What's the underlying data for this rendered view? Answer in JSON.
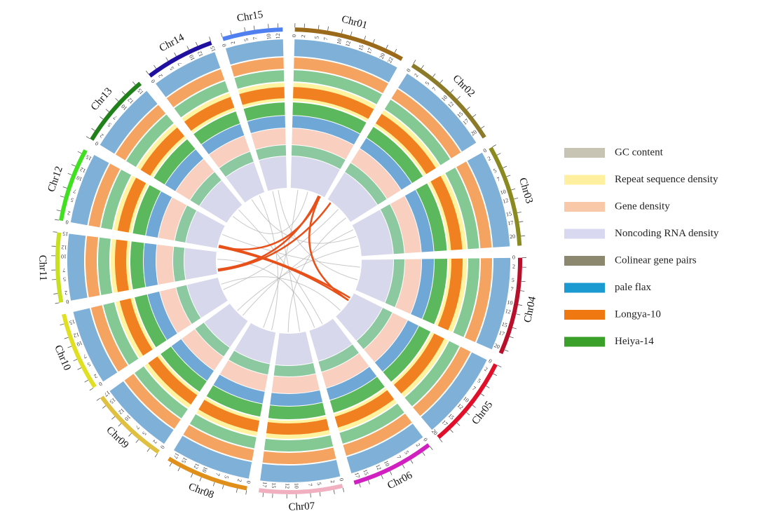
{
  "chart_data": {
    "type": "circos",
    "chromosomes": [
      {
        "name": "Chr01",
        "length": 24,
        "color": "#9a6a1a",
        "ticks": [
          0,
          2,
          5,
          7,
          10,
          12,
          15,
          17,
          20,
          22
        ]
      },
      {
        "name": "Chr02",
        "length": 22,
        "color": "#8a7a2a",
        "ticks": [
          0,
          2,
          5,
          7,
          10,
          12,
          15,
          17,
          20
        ]
      },
      {
        "name": "Chr03",
        "length": 22,
        "color": "#8a8a20",
        "ticks": [
          0,
          2,
          5,
          7,
          10,
          12,
          15,
          17,
          20
        ]
      },
      {
        "name": "Chr04",
        "length": 21,
        "color": "#b8102a",
        "ticks": [
          0,
          2,
          5,
          7,
          10,
          12,
          15,
          17,
          20
        ]
      },
      {
        "name": "Chr05",
        "length": 20,
        "color": "#e0102a",
        "ticks": [
          0,
          2,
          5,
          7,
          10,
          12,
          15,
          17,
          20
        ]
      },
      {
        "name": "Chr06",
        "length": 18,
        "color": "#d020c0",
        "ticks": [
          0,
          2,
          5,
          7,
          10,
          12,
          15,
          17
        ]
      },
      {
        "name": "Chr07",
        "length": 18,
        "color": "#f0b0c0",
        "ticks": [
          0,
          2,
          5,
          7,
          10,
          12,
          15,
          17
        ]
      },
      {
        "name": "Chr08",
        "length": 18,
        "color": "#e0901a",
        "ticks": [
          0,
          2,
          5,
          7,
          10,
          12,
          15,
          17
        ]
      },
      {
        "name": "Chr09",
        "length": 17,
        "color": "#e0c040",
        "ticks": [
          0,
          2,
          5,
          7,
          10,
          12,
          15,
          17
        ]
      },
      {
        "name": "Chr10",
        "length": 17,
        "color": "#e0e020",
        "ticks": [
          0,
          2,
          5,
          7,
          10,
          12,
          15
        ]
      },
      {
        "name": "Chr11",
        "length": 15,
        "color": "#c8e020",
        "ticks": [
          0,
          2,
          5,
          7,
          10,
          12,
          15
        ]
      },
      {
        "name": "Chr12",
        "length": 16,
        "color": "#40e020",
        "ticks": [
          0,
          2,
          5,
          7,
          10,
          12,
          15
        ]
      },
      {
        "name": "Chr13",
        "length": 16,
        "color": "#20801a",
        "ticks": [
          0,
          2,
          5,
          7,
          10,
          12,
          15
        ]
      },
      {
        "name": "Chr14",
        "length": 15,
        "color": "#2010a0",
        "ticks": [
          0,
          2,
          5,
          7,
          10,
          12,
          15
        ]
      },
      {
        "name": "Chr15",
        "length": 13,
        "color": "#5080f0",
        "ticks": [
          0,
          2,
          5,
          7,
          10,
          12
        ]
      }
    ],
    "legend": [
      {
        "name": "GC content",
        "color": "#c8c4b4"
      },
      {
        "name": "Repeat sequence density",
        "color": "#fff0a0"
      },
      {
        "name": "Gene density",
        "color": "#f9c8a8"
      },
      {
        "name": "Noncoding RNA density",
        "color": "#d8d8f0"
      },
      {
        "name": "Colinear gene pairs",
        "color": "#8c8870"
      },
      {
        "name": "pale flax",
        "color": "#1a9ad0"
      },
      {
        "name": "Longya-10",
        "color": "#f07810"
      },
      {
        "name": "Heiya-14",
        "color": "#3aa02a"
      }
    ],
    "links": [
      {
        "source": 0,
        "source_pos": 21,
        "target": 11,
        "target_pos": 1,
        "color": "#e8501a"
      },
      {
        "source": 11,
        "source_pos": 1,
        "target": 4,
        "target_pos": 6,
        "color": "#e8501a"
      },
      {
        "source": 0,
        "source_pos": 21,
        "target": 4,
        "target_pos": 6,
        "color": "#e8501a"
      },
      {
        "source": 0,
        "source_pos": 20,
        "target": 10,
        "target_pos": 3,
        "color": "#e8501a"
      },
      {
        "source": 11,
        "source_pos": 2,
        "target": 4,
        "target_pos": 4,
        "color": "#e8501a"
      },
      {
        "source": 1,
        "source_pos": 3,
        "target": 10,
        "target_pos": 2,
        "color": "#e8501a"
      },
      {
        "source": 0,
        "source_pos": 5,
        "target": 7,
        "target_pos": 9,
        "color": "#b0b0b0"
      },
      {
        "source": 0,
        "source_pos": 12,
        "target": 12,
        "target_pos": 6,
        "color": "#b0b0b0"
      },
      {
        "source": 1,
        "source_pos": 10,
        "target": 9,
        "target_pos": 8,
        "color": "#b0b0b0"
      },
      {
        "source": 2,
        "source_pos": 8,
        "target": 13,
        "target_pos": 5,
        "color": "#b0b0b0"
      },
      {
        "source": 2,
        "source_pos": 15,
        "target": 8,
        "target_pos": 10,
        "color": "#b0b0b0"
      },
      {
        "source": 3,
        "source_pos": 5,
        "target": 11,
        "target_pos": 10,
        "color": "#b0b0b0"
      },
      {
        "source": 3,
        "source_pos": 14,
        "target": 14,
        "target_pos": 7,
        "color": "#b0b0b0"
      },
      {
        "source": 5,
        "source_pos": 8,
        "target": 12,
        "target_pos": 12,
        "color": "#b0b0b0"
      },
      {
        "source": 6,
        "source_pos": 4,
        "target": 14,
        "target_pos": 3,
        "color": "#b0b0b0"
      },
      {
        "source": 6,
        "source_pos": 12,
        "target": 1,
        "target_pos": 18,
        "color": "#b0b0b0"
      },
      {
        "source": 7,
        "source_pos": 3,
        "target": 13,
        "target_pos": 11,
        "color": "#b0b0b0"
      },
      {
        "source": 8,
        "source_pos": 5,
        "target": 2,
        "target_pos": 3,
        "color": "#b0b0b0"
      },
      {
        "source": 9,
        "source_pos": 12,
        "target": 4,
        "target_pos": 15,
        "color": "#b0b0b0"
      },
      {
        "source": 10,
        "source_pos": 10,
        "target": 5,
        "target_pos": 14,
        "color": "#b0b0b0"
      }
    ]
  }
}
